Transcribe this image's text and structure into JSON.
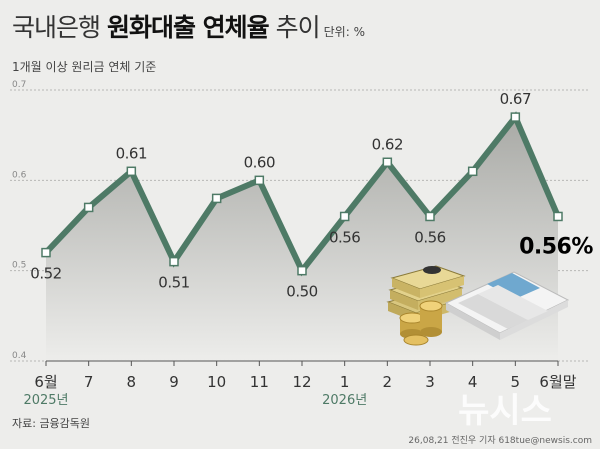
{
  "header": {
    "title_part1": "국내은행 ",
    "title_part2": "원화대출 연체율",
    "title_part3": " 추이",
    "unit": "단위: %",
    "subtitle": "1개월 이상 원리금 연체 기준"
  },
  "footer": {
    "source": "자료: 금융감독원",
    "credit": "26,08,21 전진우 기자 618tue@newsis.com",
    "watermark": "뉴시스"
  },
  "colors": {
    "line": "#4e7a66",
    "area_top": "#a9aaa6",
    "area_bottom": "#ededeb",
    "marker_fill": "#ffffff",
    "background": "#ededeb",
    "highlight": "#000000"
  },
  "chart_data": {
    "type": "line",
    "title": "국내은행 원화대출 연체율 추이",
    "ylabel": "",
    "xlabel": "",
    "unit": "%",
    "ylim": [
      0.4,
      0.7
    ],
    "yticks": [
      0.4,
      0.5,
      0.6,
      0.7
    ],
    "ytick_labels": [
      "0.4",
      "0.5",
      "0.6",
      "0.7"
    ],
    "grid": true,
    "categories": [
      "6월",
      "7",
      "8",
      "9",
      "10",
      "11",
      "12",
      "1",
      "2",
      "3",
      "4",
      "5",
      "6월말"
    ],
    "year_labels": [
      {
        "category_index": 0,
        "label": "2025년"
      },
      {
        "category_index": 7,
        "label": "2026년"
      }
    ],
    "values": [
      0.52,
      0.57,
      0.61,
      0.51,
      0.58,
      0.6,
      0.5,
      0.56,
      0.62,
      0.56,
      0.61,
      0.67,
      0.56
    ],
    "data_labels": [
      {
        "index": 0,
        "text": "0.52"
      },
      {
        "index": 2,
        "text": "0.61"
      },
      {
        "index": 3,
        "text": "0.51"
      },
      {
        "index": 5,
        "text": "0.60"
      },
      {
        "index": 6,
        "text": "0.50"
      },
      {
        "index": 7,
        "text": "0.56"
      },
      {
        "index": 8,
        "text": "0.62"
      },
      {
        "index": 9,
        "text": "0.56"
      },
      {
        "index": 11,
        "text": "0.67"
      },
      {
        "index": 12,
        "text": "0.56%"
      }
    ]
  }
}
